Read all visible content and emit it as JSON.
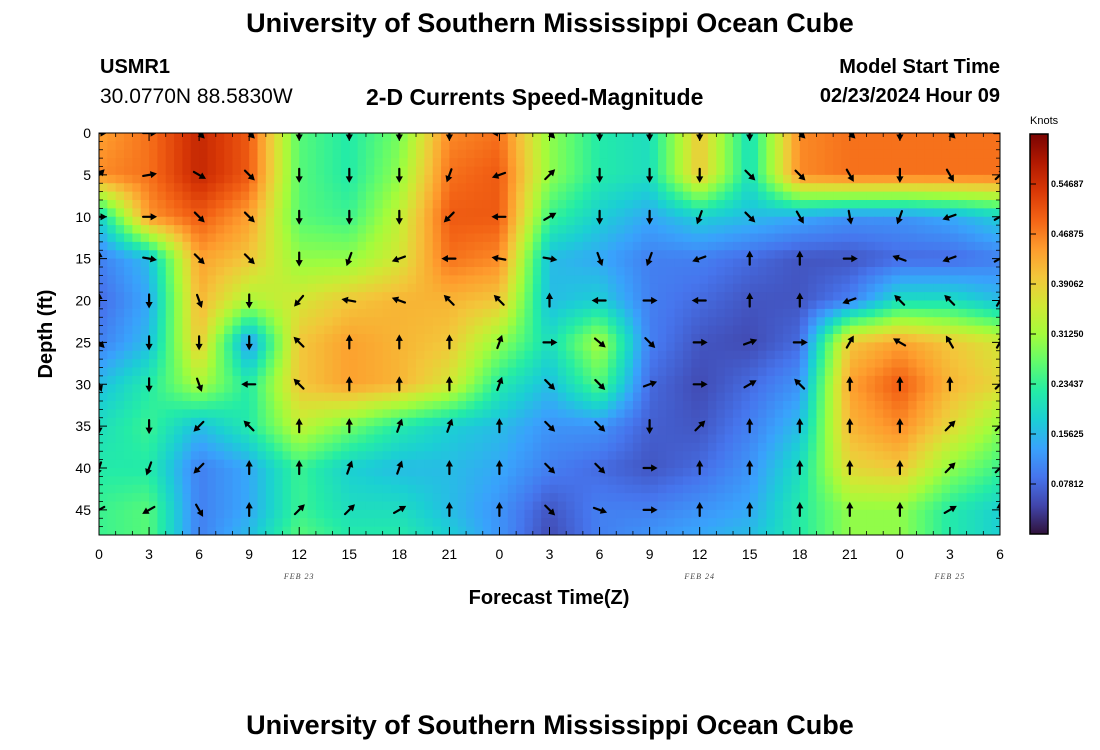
{
  "header": {
    "title": "University of Southern Mississippi Ocean Cube",
    "station_id": "USMR1",
    "station_coords": "30.0770N  88.5830W",
    "subtitle": "2-D Currents Speed-Magnitude",
    "start_label": "Model Start Time",
    "start_value": "02/23/2024 Hour 09"
  },
  "footer": {
    "title": "University of Southern Mississippi Ocean Cube"
  },
  "chart_data": {
    "type": "heatmap",
    "xlabel": "Forecast Time(Z)",
    "ylabel": "Depth (ft)",
    "x_tick_labels": [
      "0",
      "3",
      "6",
      "9",
      "12",
      "15",
      "18",
      "21",
      "0",
      "3",
      "6",
      "9",
      "12",
      "15",
      "18",
      "21",
      "0",
      "3",
      "6"
    ],
    "date_labels": [
      {
        "text": "FEB 23",
        "tick_index": 4
      },
      {
        "text": "FEB 24",
        "tick_index": 12
      },
      {
        "text": "FEB 25",
        "tick_index": 17
      }
    ],
    "y_ticks": [
      0,
      5,
      10,
      15,
      20,
      25,
      30,
      35,
      40,
      45
    ],
    "ylim": [
      0,
      48
    ],
    "x_range_hours": [
      0,
      54
    ],
    "colorbar": {
      "title": "Knots",
      "labels": [
        "0.54687",
        "0.46875",
        "0.39062",
        "0.31250",
        "0.23437",
        "0.15625",
        "0.07812"
      ],
      "range": [
        0.0,
        0.625
      ],
      "colors": [
        "#30123b",
        "#4145ab",
        "#4675ed",
        "#39a2fc",
        "#1bcfd4",
        "#24eca6",
        "#61fc6c",
        "#a4fc3b",
        "#d1e834",
        "#f3c63a",
        "#fe9b2d",
        "#f36315",
        "#d93806",
        "#b11901",
        "#7a0402"
      ]
    },
    "speed_field": {
      "hours": [
        0,
        3,
        6,
        9,
        12,
        15,
        18,
        21,
        24,
        27,
        30,
        33,
        36,
        39,
        42,
        45,
        48,
        51,
        54
      ],
      "depths": [
        0,
        5,
        10,
        15,
        20,
        25,
        30,
        35,
        40,
        45,
        48
      ],
      "values": [
        [
          0.44,
          0.48,
          0.56,
          0.5,
          0.26,
          0.22,
          0.28,
          0.46,
          0.48,
          0.3,
          0.22,
          0.2,
          0.4,
          0.2,
          0.46,
          0.48,
          0.48,
          0.48,
          0.48
        ],
        [
          0.46,
          0.48,
          0.56,
          0.5,
          0.26,
          0.22,
          0.3,
          0.48,
          0.5,
          0.3,
          0.22,
          0.2,
          0.4,
          0.2,
          0.46,
          0.48,
          0.48,
          0.48,
          0.48
        ],
        [
          0.18,
          0.45,
          0.5,
          0.44,
          0.26,
          0.24,
          0.34,
          0.5,
          0.5,
          0.24,
          0.18,
          0.14,
          0.18,
          0.16,
          0.14,
          0.12,
          0.12,
          0.14,
          0.18
        ],
        [
          0.1,
          0.16,
          0.44,
          0.4,
          0.3,
          0.3,
          0.36,
          0.48,
          0.46,
          0.16,
          0.14,
          0.1,
          0.1,
          0.08,
          0.06,
          0.06,
          0.08,
          0.08,
          0.1
        ],
        [
          0.08,
          0.14,
          0.42,
          0.32,
          0.36,
          0.4,
          0.42,
          0.42,
          0.4,
          0.16,
          0.18,
          0.1,
          0.08,
          0.06,
          0.06,
          0.1,
          0.2,
          0.2,
          0.16
        ],
        [
          0.1,
          0.16,
          0.4,
          0.12,
          0.4,
          0.44,
          0.42,
          0.4,
          0.3,
          0.2,
          0.32,
          0.1,
          0.06,
          0.05,
          0.08,
          0.4,
          0.44,
          0.4,
          0.36
        ],
        [
          0.16,
          0.22,
          0.32,
          0.22,
          0.4,
          0.44,
          0.42,
          0.36,
          0.22,
          0.16,
          0.26,
          0.08,
          0.05,
          0.08,
          0.12,
          0.44,
          0.5,
          0.42,
          0.38
        ],
        [
          0.2,
          0.24,
          0.16,
          0.22,
          0.34,
          0.28,
          0.22,
          0.18,
          0.16,
          0.12,
          0.12,
          0.07,
          0.06,
          0.1,
          0.16,
          0.42,
          0.46,
          0.38,
          0.3
        ],
        [
          0.22,
          0.22,
          0.1,
          0.14,
          0.24,
          0.18,
          0.16,
          0.16,
          0.14,
          0.1,
          0.08,
          0.06,
          0.08,
          0.12,
          0.2,
          0.38,
          0.4,
          0.3,
          0.24
        ],
        [
          0.24,
          0.26,
          0.1,
          0.14,
          0.24,
          0.2,
          0.2,
          0.16,
          0.12,
          0.06,
          0.1,
          0.1,
          0.12,
          0.14,
          0.22,
          0.3,
          0.3,
          0.22,
          0.18
        ],
        [
          0.24,
          0.26,
          0.1,
          0.16,
          0.26,
          0.22,
          0.22,
          0.18,
          0.12,
          0.05,
          0.1,
          0.12,
          0.14,
          0.16,
          0.22,
          0.3,
          0.3,
          0.22,
          0.18
        ]
      ]
    },
    "current_vectors": {
      "hours": [
        0,
        3,
        6,
        9,
        12,
        15,
        18,
        21,
        24,
        27,
        30,
        33,
        36,
        39,
        42,
        45,
        48,
        51,
        54
      ],
      "depths": [
        0,
        5,
        10,
        15,
        20,
        25,
        30,
        35,
        40,
        45
      ],
      "direction_deg_clockwise_from_north": [
        [
          90,
          90,
          135,
          135,
          180,
          180,
          180,
          180,
          270,
          135,
          180,
          180,
          180,
          180,
          135,
          135,
          180,
          135,
          90
        ],
        [
          45,
          80,
          120,
          135,
          180,
          180,
          180,
          200,
          250,
          45,
          180,
          180,
          180,
          135,
          135,
          150,
          180,
          150,
          45
        ],
        [
          90,
          90,
          135,
          135,
          180,
          180,
          180,
          225,
          270,
          60,
          180,
          180,
          200,
          135,
          150,
          170,
          200,
          250,
          60
        ],
        [
          0,
          100,
          135,
          135,
          180,
          200,
          250,
          270,
          280,
          100,
          160,
          200,
          250,
          0,
          0,
          90,
          290,
          250,
          60
        ],
        [
          0,
          180,
          160,
          180,
          220,
          280,
          290,
          315,
          315,
          0,
          270,
          90,
          270,
          0,
          0,
          250,
          315,
          315,
          30
        ],
        [
          135,
          180,
          180,
          180,
          315,
          0,
          0,
          0,
          20,
          90,
          130,
          135,
          90,
          70,
          90,
          30,
          300,
          330,
          30
        ],
        [
          160,
          180,
          160,
          270,
          315,
          0,
          0,
          0,
          20,
          135,
          135,
          70,
          90,
          60,
          315,
          0,
          0,
          0,
          45
        ],
        [
          180,
          180,
          225,
          315,
          0,
          0,
          20,
          20,
          0,
          135,
          135,
          180,
          45,
          0,
          0,
          0,
          0,
          45,
          45
        ],
        [
          200,
          200,
          225,
          0,
          0,
          20,
          20,
          0,
          0,
          135,
          135,
          90,
          0,
          0,
          0,
          0,
          0,
          45,
          45
        ],
        [
          240,
          240,
          150,
          0,
          45,
          45,
          60,
          0,
          0,
          135,
          110,
          90,
          0,
          0,
          0,
          0,
          0,
          60,
          0
        ]
      ]
    },
    "legend": "right",
    "grid": false
  }
}
